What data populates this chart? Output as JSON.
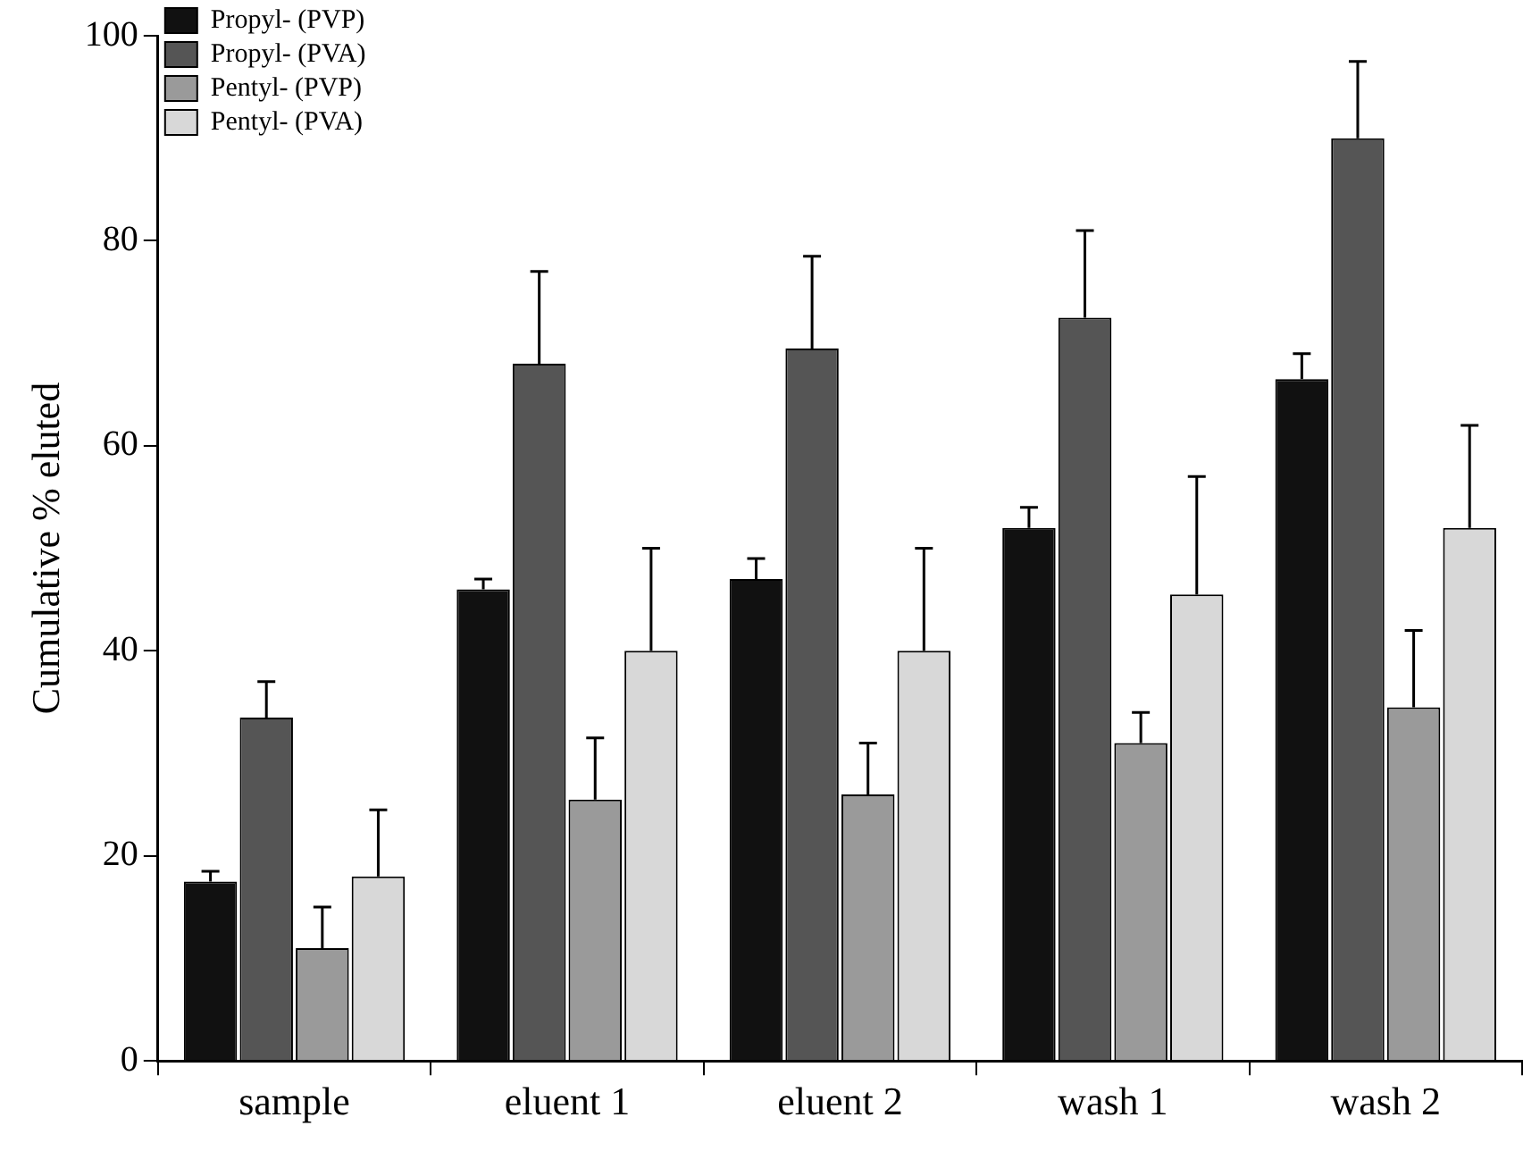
{
  "chart_data": {
    "type": "bar",
    "ylabel": "Cumulative % eluted",
    "categories": [
      "sample",
      "eluent 1",
      "eluent 2",
      "wash 1",
      "wash 2"
    ],
    "series": [
      {
        "name": "Propyl- (PVP)",
        "color": "#111111",
        "values": [
          17.5,
          46,
          47,
          52,
          66.5
        ],
        "errors": [
          [
            17.5,
            18.5
          ],
          [
            46,
            47
          ],
          [
            47,
            49
          ],
          [
            52,
            54
          ],
          [
            66.5,
            69
          ]
        ]
      },
      {
        "name": "Propyl- (PVA)",
        "color": "#555555",
        "values": [
          33.5,
          68,
          69.5,
          72.5,
          90
        ],
        "errors": [
          [
            33.5,
            37
          ],
          [
            68,
            77
          ],
          [
            69.5,
            78.5
          ],
          [
            72.5,
            81
          ],
          [
            90,
            97.5
          ]
        ]
      },
      {
        "name": "Pentyl- (PVP)",
        "color": "#9a9a9a",
        "values": [
          11,
          25.5,
          26,
          31,
          34.5
        ],
        "errors": [
          [
            11,
            15
          ],
          [
            25.5,
            31.5
          ],
          [
            26,
            31
          ],
          [
            31,
            34
          ],
          [
            34.5,
            42
          ]
        ]
      },
      {
        "name": "Pentyl- (PVA)",
        "color": "#d8d8d8",
        "values": [
          18,
          40,
          40,
          45.5,
          52
        ],
        "errors": [
          [
            18,
            24.5
          ],
          [
            40,
            50
          ],
          [
            40,
            50
          ],
          [
            45.5,
            57
          ],
          [
            52,
            62
          ]
        ]
      }
    ],
    "ylim": [
      0,
      100
    ],
    "yticks": [
      0,
      20,
      40,
      60,
      80,
      100
    ],
    "grid": false,
    "legend": "top left"
  }
}
